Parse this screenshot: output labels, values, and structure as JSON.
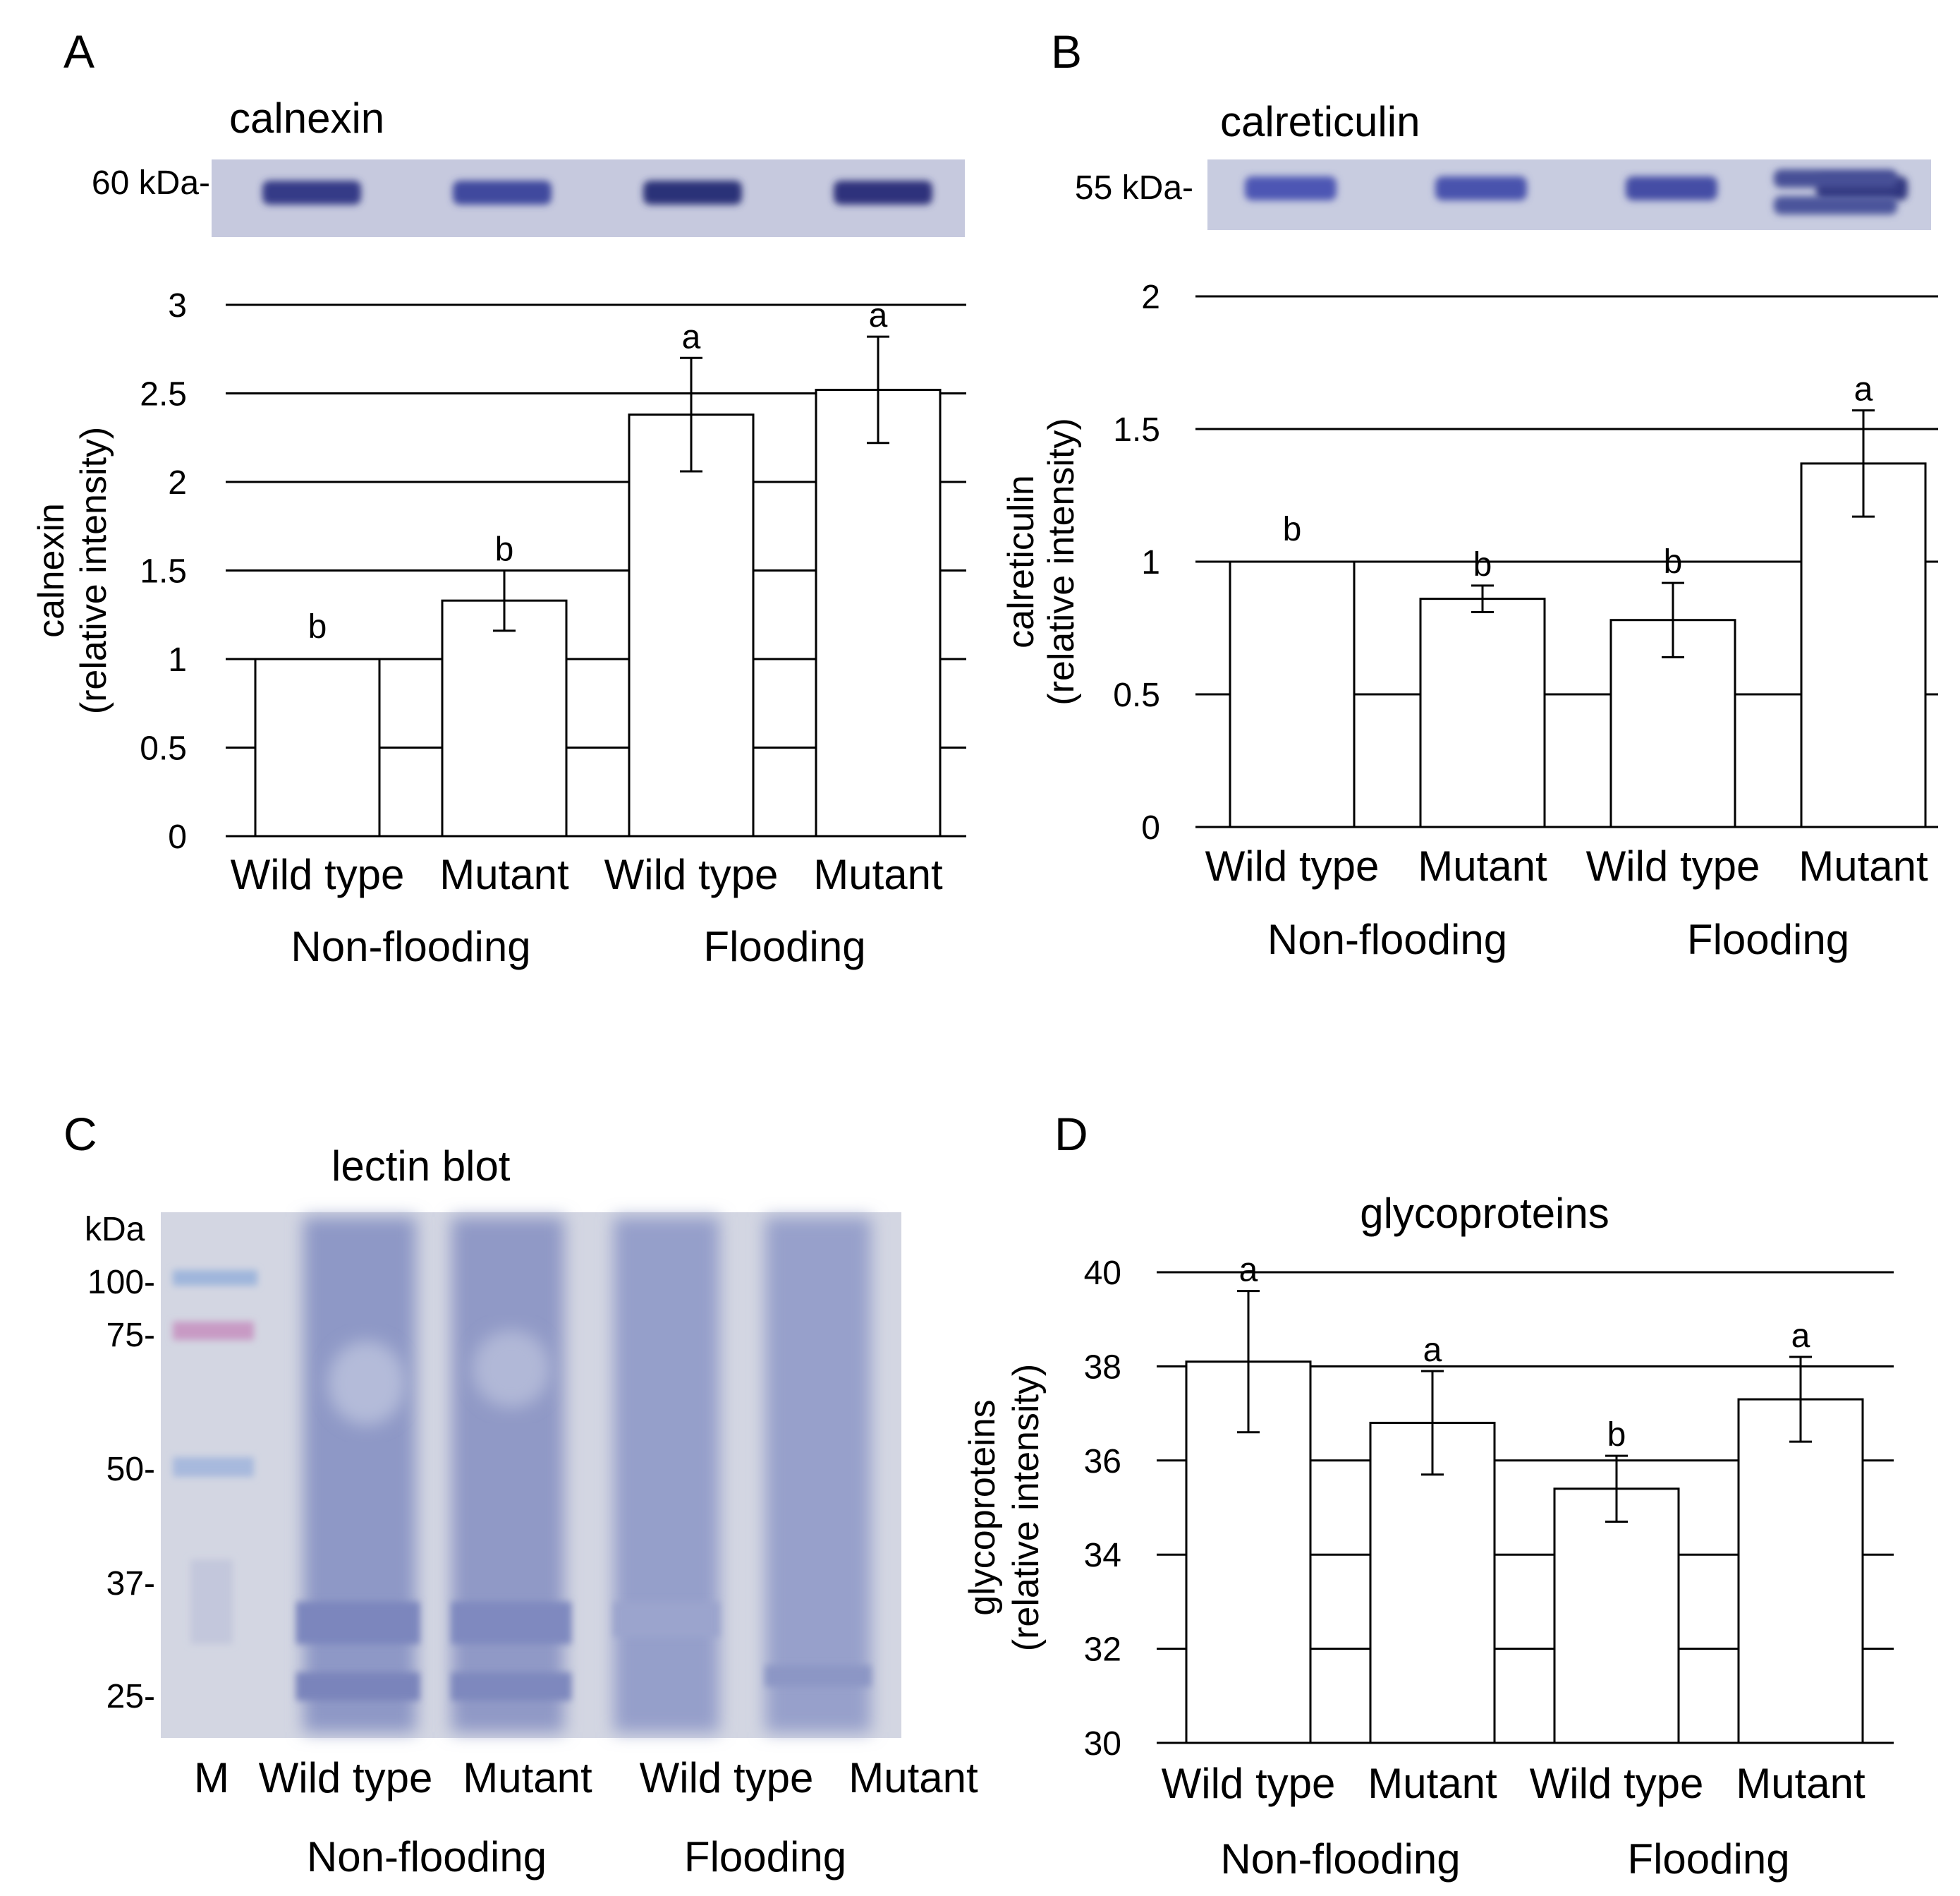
{
  "panels": {
    "A": {
      "label": "A",
      "blot_title": "calnexin",
      "marker": "60 kDa-",
      "band_darkness": [
        0.7,
        0.55,
        0.8,
        0.78
      ]
    },
    "B": {
      "label": "B",
      "blot_title": "calreticulin",
      "marker": "55 kDa-",
      "band_darkness": [
        0.4,
        0.45,
        0.5,
        0.75
      ]
    },
    "C": {
      "label": "C",
      "blot_title": "lectin blot",
      "kda_label": "kDa",
      "markers": [
        "100-",
        "75-",
        "50-",
        "37-",
        "25-"
      ],
      "lane_labels": [
        "M",
        "Wild type",
        "Mutant",
        "Wild type",
        "Mutant"
      ],
      "groups": [
        "Non-flooding",
        "Flooding"
      ]
    },
    "D": {
      "label": "D"
    }
  },
  "chart_data": [
    {
      "type": "bar",
      "panel": "A",
      "title": "",
      "ylabel_line1": "calnexin",
      "ylabel_line2": "(relative intensity)",
      "categories": [
        "Wild type",
        "Mutant",
        "Wild type",
        "Mutant"
      ],
      "groups": [
        "Non-flooding",
        "Flooding"
      ],
      "values": [
        1.0,
        1.33,
        2.38,
        2.52
      ],
      "errors": [
        0,
        0.17,
        0.32,
        0.3
      ],
      "letters": [
        "b",
        "b",
        "a",
        "a"
      ],
      "ylim": [
        0,
        3
      ],
      "yticks": [
        "0",
        "0.5",
        "1",
        "1.5",
        "2",
        "2.5",
        "3"
      ],
      "grid": true
    },
    {
      "type": "bar",
      "panel": "B",
      "title": "",
      "ylabel_line1": "calreticulin",
      "ylabel_line2": "(relative intensity)",
      "categories": [
        "Wild type",
        "Mutant",
        "Wild type",
        "Mutant"
      ],
      "groups": [
        "Non-flooding",
        "Flooding"
      ],
      "values": [
        1.0,
        0.86,
        0.78,
        1.37
      ],
      "errors": [
        0,
        0.05,
        0.14,
        0.2
      ],
      "letters": [
        "b",
        "b",
        "b",
        "a"
      ],
      "ylim": [
        0,
        2
      ],
      "yticks": [
        "0",
        "0.5",
        "1",
        "1.5",
        "2"
      ],
      "grid": true
    },
    {
      "type": "bar",
      "panel": "D",
      "title": "glycoproteins",
      "ylabel_line1": "glycoproteins",
      "ylabel_line2": "(relative intensity)",
      "categories": [
        "Wild type",
        "Mutant",
        "Wild type",
        "Mutant"
      ],
      "groups": [
        "Non-flooding",
        "Flooding"
      ],
      "values": [
        38.1,
        36.8,
        35.4,
        37.3
      ],
      "errors": [
        1.5,
        1.1,
        0.7,
        0.9
      ],
      "letters": [
        "a",
        "a",
        "b",
        "a"
      ],
      "ylim": [
        30,
        40
      ],
      "yticks": [
        "30",
        "32",
        "34",
        "36",
        "38",
        "40"
      ],
      "grid": true
    }
  ]
}
